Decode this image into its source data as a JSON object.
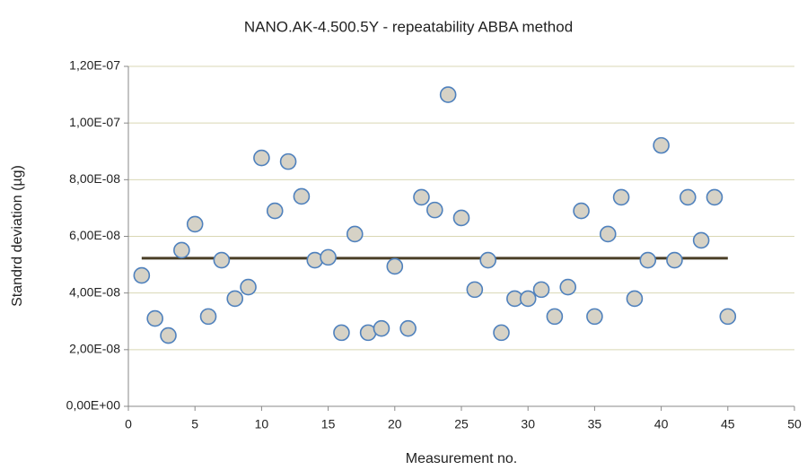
{
  "chart_data": {
    "type": "scatter",
    "title": "NANO.AK-4.500.5Y - repeatability ABBA method",
    "x_label": "Measurement no.",
    "y_label": "Standrd deviation (µg)",
    "xlim": [
      0,
      50
    ],
    "xticks": [
      0,
      5,
      10,
      15,
      20,
      25,
      30,
      35,
      40,
      45,
      50
    ],
    "ylim": [
      0,
      1.2e-07
    ],
    "yticks": [
      {
        "value": 0,
        "label": "0,00E+00"
      },
      {
        "value": 2e-08,
        "label": "2,00E-08"
      },
      {
        "value": 4e-08,
        "label": "4,00E-08"
      },
      {
        "value": 6e-08,
        "label": "6,00E-08"
      },
      {
        "value": 8e-08,
        "label": "8,00E-08"
      },
      {
        "value": 1e-07,
        "label": "1,00E-07"
      },
      {
        "value": 1.2e-07,
        "label": "1,20E-07"
      }
    ],
    "grid": true,
    "series": [
      {
        "color": "#d6d2c6",
        "edge_color": "#4f81bd",
        "x": [
          1,
          2,
          3,
          4,
          5,
          6,
          7,
          8,
          9,
          10,
          11,
          12,
          13,
          14,
          15,
          16,
          17,
          18,
          19,
          20,
          21,
          22,
          23,
          24,
          25,
          26,
          27,
          28,
          29,
          30,
          31,
          32,
          33,
          34,
          35,
          36,
          37,
          38,
          39,
          40,
          41,
          42,
          43,
          44,
          45
        ],
        "values": [
          4.62e-08,
          3.1e-08,
          2.5e-08,
          5.51e-08,
          6.43e-08,
          3.17e-08,
          5.16e-08,
          3.8e-08,
          4.21e-08,
          8.77e-08,
          6.9e-08,
          8.64e-08,
          7.41e-08,
          5.16e-08,
          5.26e-08,
          2.6e-08,
          6.08e-08,
          2.6e-08,
          2.75e-08,
          4.94e-08,
          2.75e-08,
          7.38e-08,
          6.93e-08,
          1.1e-07,
          6.65e-08,
          4.12e-08,
          5.16e-08,
          2.6e-08,
          3.8e-08,
          3.8e-08,
          4.12e-08,
          3.17e-08,
          4.21e-08,
          6.9e-08,
          3.17e-08,
          6.08e-08,
          7.38e-08,
          3.8e-08,
          5.16e-08,
          9.21e-08,
          5.16e-08,
          7.38e-08,
          5.86e-08,
          7.38e-08,
          3.17e-08
        ]
      }
    ],
    "mean_line": {
      "x": [
        1,
        45
      ],
      "values": [
        5.23e-08,
        5.23e-08
      ],
      "color": "#4a3f26"
    }
  }
}
